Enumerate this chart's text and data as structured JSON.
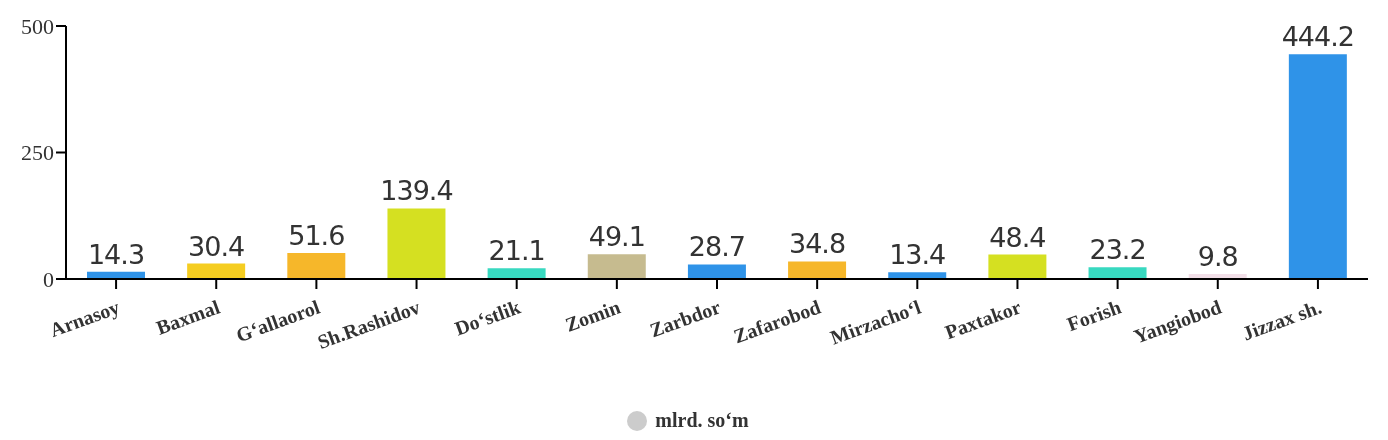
{
  "chart_data": {
    "type": "bar",
    "categories": [
      "Arnasoy",
      "Baxmal",
      "G‘allaorol",
      "Sh.Rashidov",
      "Do‘stlik",
      "Zomin",
      "Zarbdor",
      "Zafarobod",
      "Mirzacho‘l",
      "Paxtakor",
      "Forish",
      "Yangiobod",
      "Jizzax sh."
    ],
    "series": [
      {
        "name": "mlrd. so‘m",
        "color": "#cccccc",
        "colors": [
          "#2f93e8",
          "#f5cd21",
          "#f6b72a",
          "#d5e021",
          "#38d9c0",
          "#c6bb8f",
          "#2f93e8",
          "#f6b72a",
          "#2f93e8",
          "#d5e021",
          "#38d9c0",
          "#f2dfe8",
          "#2f93e8"
        ],
        "values": [
          14.3,
          30.4,
          51.6,
          139.4,
          21.1,
          49.1,
          28.7,
          34.8,
          13.4,
          48.4,
          23.2,
          9.8,
          444.2
        ]
      }
    ],
    "ylim": [
      0,
      500
    ],
    "yticks": [
      0,
      250,
      500
    ],
    "data_labels": true,
    "legend": "bottom",
    "grid": false
  }
}
